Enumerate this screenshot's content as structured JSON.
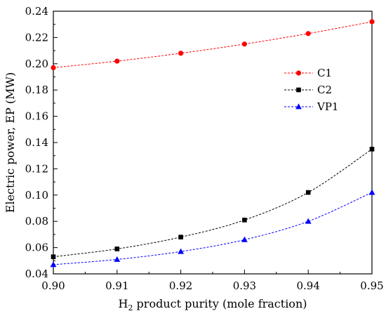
{
  "chart_data": {
    "type": "line",
    "xlabel_main": "H",
    "xlabel_sub": "2",
    "xlabel_rest": " product purity (mole fraction)",
    "ylabel": "Electric power, EP (MW)",
    "x": [
      0.9,
      0.91,
      0.92,
      0.93,
      0.94,
      0.95
    ],
    "x_tick_labels": [
      "0.90",
      "0.91",
      "0.92",
      "0.93",
      "0.94",
      "0.95"
    ],
    "y_tick_labels": [
      "0.04",
      "0.06",
      "0.08",
      "0.10",
      "0.12",
      "0.14",
      "0.16",
      "0.18",
      "0.20",
      "0.22",
      "0.24"
    ],
    "y_ticks": [
      0.04,
      0.06,
      0.08,
      0.1,
      0.12,
      0.14,
      0.16,
      0.18,
      0.2,
      0.22,
      0.24
    ],
    "xlim": [
      0.9,
      0.95
    ],
    "ylim": [
      0.04,
      0.24
    ],
    "grid": false,
    "legend_position": "upper-right",
    "series": [
      {
        "name": "C1",
        "marker": "circle",
        "color": "#ff0000",
        "values": [
          0.197,
          0.202,
          0.208,
          0.215,
          0.223,
          0.232
        ]
      },
      {
        "name": "C2",
        "marker": "square",
        "color": "#000000",
        "values": [
          0.053,
          0.059,
          0.068,
          0.081,
          0.102,
          0.135
        ]
      },
      {
        "name": "VP1",
        "marker": "triangle",
        "color": "#0000ff",
        "values": [
          0.047,
          0.051,
          0.057,
          0.066,
          0.08,
          0.102
        ]
      }
    ]
  }
}
